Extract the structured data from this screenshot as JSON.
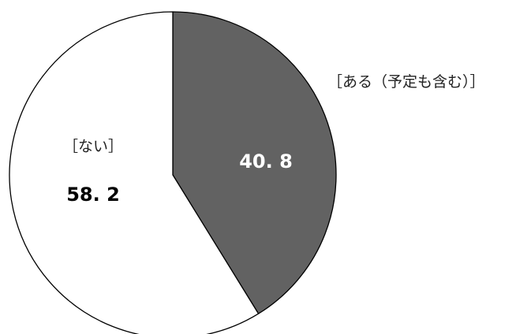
{
  "chart_data": {
    "type": "pie",
    "title": "",
    "start": "12 o'clock",
    "direction": "clockwise",
    "slices": [
      {
        "name": "ある（予定も含む）",
        "label": "［ある（予定も含む）］",
        "value": 40.8,
        "value_label": "40. 8",
        "color": "#626262",
        "value_color": "#ffffff",
        "label_placement": "outside-right"
      },
      {
        "name": "ない",
        "label": "［ない］",
        "value": 58.2,
        "value_label": "58. 2",
        "color": "#ffffff",
        "value_color": "#000000",
        "label_placement": "inside-left"
      }
    ]
  }
}
